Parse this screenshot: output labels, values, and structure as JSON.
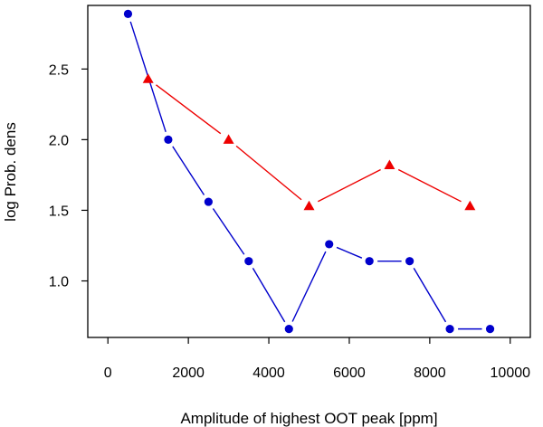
{
  "chart_data": {
    "type": "line",
    "xlabel": "Amplitude of highest OOT peak [ppm]",
    "ylabel": "log Prob. dens",
    "xlim": [
      -500,
      10500
    ],
    "ylim": [
      0.6,
      2.95
    ],
    "x_ticks": [
      0,
      2000,
      4000,
      6000,
      8000,
      10000
    ],
    "y_ticks": [
      1.0,
      1.5,
      2.0,
      2.5
    ],
    "x_tick_labels": [
      "0",
      "2000",
      "4000",
      "6000",
      "8000",
      "10000"
    ],
    "y_tick_labels": [
      "1.0",
      "1.5",
      "2.0",
      "2.5"
    ],
    "grid": false,
    "legend": "none",
    "series": [
      {
        "color": "#0000cc",
        "marker": "circle",
        "x": [
          500,
          1500,
          2500,
          3500,
          4500,
          5500,
          6500,
          7500,
          8500,
          9500
        ],
        "y": [
          2.89,
          2.0,
          1.56,
          1.14,
          0.66,
          1.26,
          1.14,
          1.14,
          0.66,
          0.66
        ]
      },
      {
        "color": "#ee0000",
        "marker": "triangle",
        "x": [
          1000,
          3000,
          5000,
          7000,
          9000
        ],
        "y": [
          2.43,
          2.0,
          1.53,
          1.82,
          1.53
        ]
      }
    ]
  }
}
